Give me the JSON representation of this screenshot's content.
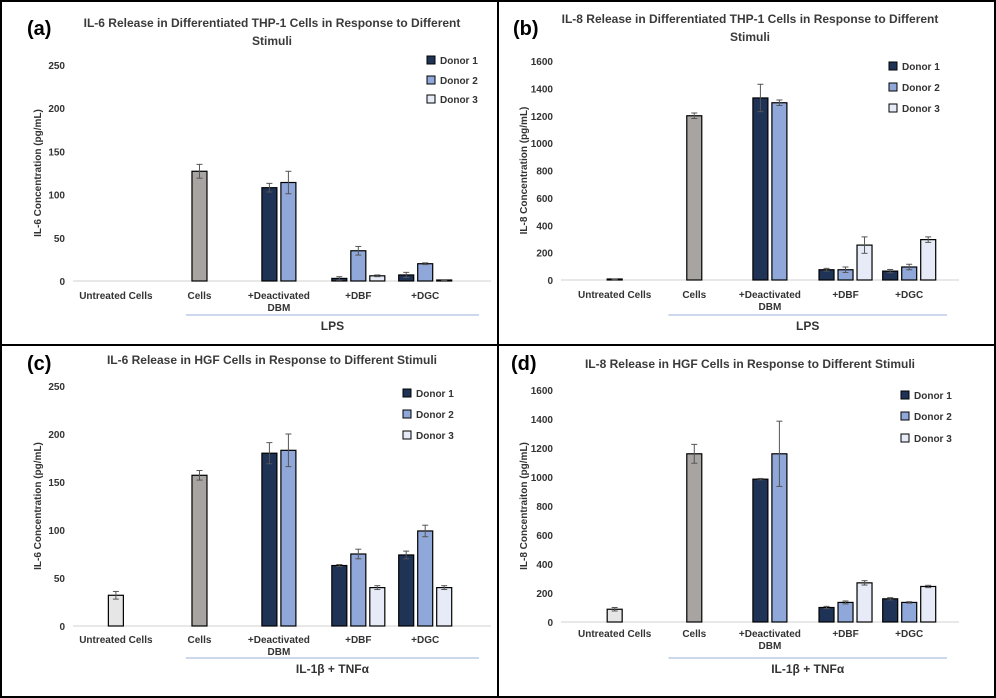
{
  "colors": {
    "donor1": "#1f3356",
    "donor2": "#8fa8d9",
    "donor3": "#e6ebf7",
    "cells": "#a7a4a2",
    "untreated": "#e6e6e6",
    "group_line": "#9ab3d8"
  },
  "chart_data": [
    {
      "type": "bar",
      "panel": "(a)",
      "title_lines": [
        "IL-6 Release in Differentiated THP-1 Cells in Response to Different",
        "Stimuli"
      ],
      "ylabel": "IL-6 Concentration (pg/mL)",
      "ylim": [
        0,
        250
      ],
      "yticks": [
        0,
        50,
        100,
        150,
        200,
        250
      ],
      "legend": [
        "Donor 1",
        "Donor 2",
        "Donor 3"
      ],
      "group_label": "LPS",
      "categories": [
        {
          "label": [
            "Untreated Cells"
          ],
          "bars": []
        },
        {
          "label": [
            "Cells"
          ],
          "bars": [
            {
              "kind": "cells",
              "value": 127,
              "err": 8
            }
          ]
        },
        {
          "label": [
            "+Deactivated",
            "DBM"
          ],
          "bars": [
            {
              "kind": "donor1",
              "value": 108,
              "err": 5
            },
            {
              "kind": "donor2",
              "value": 114,
              "err": 13
            }
          ]
        },
        {
          "label": [
            "+DBF"
          ],
          "bars": [
            {
              "kind": "donor1",
              "value": 3,
              "err": 2
            },
            {
              "kind": "donor2",
              "value": 35,
              "err": 5
            },
            {
              "kind": "donor3",
              "value": 6,
              "err": 1
            }
          ]
        },
        {
          "label": [
            "+DGC"
          ],
          "bars": [
            {
              "kind": "donor1",
              "value": 7,
              "err": 3
            },
            {
              "kind": "donor2",
              "value": 20,
              "err": 1
            },
            {
              "kind": "donor3",
              "value": 1,
              "err": 0.5
            }
          ]
        }
      ]
    },
    {
      "type": "bar",
      "panel": "(b)",
      "title_lines": [
        "IL-8 Release in Differentiated THP-1 Cells in Response to Different",
        "Stimuli"
      ],
      "ylabel": "IL-8 Concentration (pg/mL)",
      "ylim": [
        0,
        1600
      ],
      "yticks": [
        0,
        200,
        400,
        600,
        800,
        1000,
        1200,
        1400,
        1600
      ],
      "legend": [
        "Donor 1",
        "Donor 2",
        "Donor 3"
      ],
      "group_label": "LPS",
      "categories": [
        {
          "label": [
            "Untreated Cells"
          ],
          "bars": [
            {
              "kind": "untreated",
              "value": 5,
              "err": 3
            }
          ]
        },
        {
          "label": [
            "Cells"
          ],
          "bars": [
            {
              "kind": "cells",
              "value": 1200,
              "err": 20
            }
          ]
        },
        {
          "label": [
            "+Deactivated",
            "DBM"
          ],
          "bars": [
            {
              "kind": "donor1",
              "value": 1330,
              "err": 100
            },
            {
              "kind": "donor2",
              "value": 1295,
              "err": 20
            }
          ]
        },
        {
          "label": [
            "+DBF"
          ],
          "bars": [
            {
              "kind": "donor1",
              "value": 75,
              "err": 10
            },
            {
              "kind": "donor2",
              "value": 75,
              "err": 20
            },
            {
              "kind": "donor3",
              "value": 255,
              "err": 60
            }
          ]
        },
        {
          "label": [
            "+DGC"
          ],
          "bars": [
            {
              "kind": "donor1",
              "value": 65,
              "err": 12
            },
            {
              "kind": "donor2",
              "value": 95,
              "err": 20
            },
            {
              "kind": "donor3",
              "value": 295,
              "err": 20
            }
          ]
        }
      ]
    },
    {
      "type": "bar",
      "panel": "(c)",
      "title_lines": [
        "IL-6 Release in HGF Cells in Response to Different Stimuli"
      ],
      "ylabel": "IL-6 Concentration (pg/mL)",
      "ylim": [
        0,
        250
      ],
      "yticks": [
        0,
        50,
        100,
        150,
        200,
        250
      ],
      "legend": [
        "Donor 1",
        "Donor 2",
        "Donor 3"
      ],
      "group_label": "IL-1β + TNFα",
      "categories": [
        {
          "label": [
            "Untreated Cells"
          ],
          "bars": [
            {
              "kind": "untreated",
              "value": 32,
              "err": 4
            }
          ]
        },
        {
          "label": [
            "Cells"
          ],
          "bars": [
            {
              "kind": "cells",
              "value": 157,
              "err": 5
            }
          ]
        },
        {
          "label": [
            "+Deactivated",
            "DBM"
          ],
          "bars": [
            {
              "kind": "donor1",
              "value": 180,
              "err": 11
            },
            {
              "kind": "donor2",
              "value": 183,
              "err": 17
            }
          ]
        },
        {
          "label": [
            "+DBF"
          ],
          "bars": [
            {
              "kind": "donor1",
              "value": 63,
              "err": 1
            },
            {
              "kind": "donor2",
              "value": 75,
              "err": 5
            },
            {
              "kind": "donor3",
              "value": 40,
              "err": 2
            }
          ]
        },
        {
          "label": [
            "+DGC"
          ],
          "bars": [
            {
              "kind": "donor1",
              "value": 74,
              "err": 4
            },
            {
              "kind": "donor2",
              "value": 99,
              "err": 6
            },
            {
              "kind": "donor3",
              "value": 40,
              "err": 2
            }
          ]
        }
      ]
    },
    {
      "type": "bar",
      "panel": "(d)",
      "title_lines": [
        "IL-8 Release in HGF Cells in Response to Different Stimuli"
      ],
      "ylabel": "IL-8 Concentraiton (pg/mL)",
      "ylim": [
        0,
        1600
      ],
      "yticks": [
        0,
        200,
        400,
        600,
        800,
        1000,
        1200,
        1400,
        1600
      ],
      "legend": [
        "Donor 1",
        "Donor 2",
        "Donor 3"
      ],
      "group_label": "IL-1β + TNFα",
      "categories": [
        {
          "label": [
            "Untreated Cells"
          ],
          "bars": [
            {
              "kind": "untreated",
              "value": 88,
              "err": 12
            }
          ]
        },
        {
          "label": [
            "Cells"
          ],
          "bars": [
            {
              "kind": "cells",
              "value": 1160,
              "err": 65
            }
          ]
        },
        {
          "label": [
            "+Deactivated",
            "DBM"
          ],
          "bars": [
            {
              "kind": "donor1",
              "value": 985,
              "err": 5
            },
            {
              "kind": "donor2",
              "value": 1160,
              "err": 225
            }
          ]
        },
        {
          "label": [
            "+DBF"
          ],
          "bars": [
            {
              "kind": "donor1",
              "value": 100,
              "err": 8
            },
            {
              "kind": "donor2",
              "value": 135,
              "err": 10
            },
            {
              "kind": "donor3",
              "value": 270,
              "err": 15
            }
          ]
        },
        {
          "label": [
            "+DGC"
          ],
          "bars": [
            {
              "kind": "donor1",
              "value": 160,
              "err": 8
            },
            {
              "kind": "donor2",
              "value": 135,
              "err": 5
            },
            {
              "kind": "donor3",
              "value": 245,
              "err": 8
            }
          ]
        }
      ]
    }
  ]
}
